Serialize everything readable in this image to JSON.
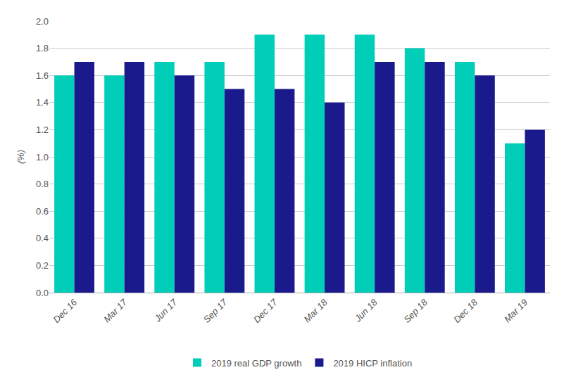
{
  "chart_data": {
    "type": "bar",
    "ylabel": "(%)",
    "categories": [
      "Dec 16",
      "Mar 17",
      "Jun 17",
      "Sep 17",
      "Dec 17",
      "Mar 18",
      "Jun 18",
      "Sep 18",
      "Dec 18",
      "Mar 19"
    ],
    "series": [
      {
        "name": "2019 real GDP growth",
        "color": "#00CEB8",
        "values": [
          1.6,
          1.6,
          1.7,
          1.7,
          1.9,
          1.9,
          1.9,
          1.8,
          1.7,
          1.1
        ]
      },
      {
        "name": "2019 HICP inflation",
        "color": "#1A1A8C",
        "values": [
          1.7,
          1.7,
          1.6,
          1.5,
          1.5,
          1.4,
          1.7,
          1.7,
          1.6,
          1.2
        ]
      }
    ],
    "ylim": [
      0.0,
      2.0
    ],
    "yticks": [
      {
        "value": 0,
        "label": "0.0"
      },
      0.2,
      0.4,
      0.6,
      0.8,
      {
        "value": 1,
        "label": "1.0"
      },
      1.2,
      1.4,
      1.6,
      1.8,
      {
        "value": 2,
        "label": "2.0"
      }
    ],
    "grid": true,
    "legend": "bottom"
  }
}
